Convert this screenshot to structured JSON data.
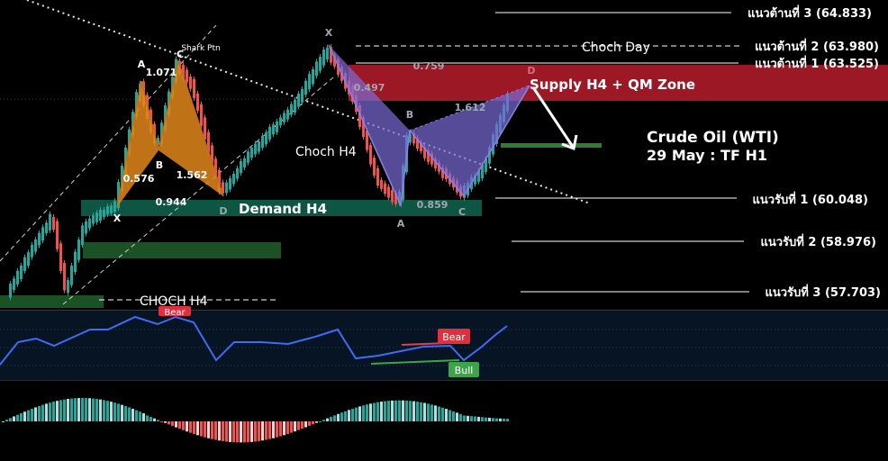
{
  "chart_data": {
    "type": "candlestick",
    "title": "Crude Oil (WTI)",
    "subtitle": "29 May : TF H1",
    "resistance_levels": [
      {
        "label": "แนวต้านที่ 3 (64.833)",
        "value": 64.833
      },
      {
        "label": "แนวต้านที่ 2 (63.980)",
        "value": 63.98
      },
      {
        "label": "แนวต้านที่ 1 (63.525)",
        "value": 63.525
      }
    ],
    "support_levels": [
      {
        "label": "แนวรับที่ 1 (60.048)",
        "value": 60.048
      },
      {
        "label": "แนวรับที่ 2  (58.976)",
        "value": 58.976
      },
      {
        "label": "แนวรับที่ 3  (57.703)",
        "value": 57.703
      }
    ],
    "zones": {
      "supply": "Supply H4 + QM Zone",
      "demand": "Demand H4"
    },
    "annotations": {
      "choch_day": "Choch Day",
      "choch_h4": "Choch H4",
      "choch_h4_low": "CHOCH H4",
      "shark": "Shark Ptn"
    },
    "shark_points": [
      "X",
      "A",
      "B",
      "C",
      "D"
    ],
    "shark_ratios": [
      "1.071",
      "0.576",
      "1.562",
      "0.944"
    ],
    "bat_points": [
      "X",
      "A",
      "B",
      "C",
      "D"
    ],
    "bat_ratios": [
      "0.759",
      "0.497",
      "1.612",
      "0.859"
    ],
    "rsi": {
      "bear_label": "Bear",
      "bull_label": "Bull",
      "top_label": "Bear"
    },
    "colors": {
      "background": "#000000",
      "bull_candle": "#26a69a",
      "bear_candle": "#ef5350",
      "supply_zone": "#b71c2b",
      "demand_zone": "#0f5e4a",
      "shark_fill": "#e0861a",
      "bat_fill": "#7b6bd6",
      "rsi_line": "#3d6cf5"
    }
  }
}
